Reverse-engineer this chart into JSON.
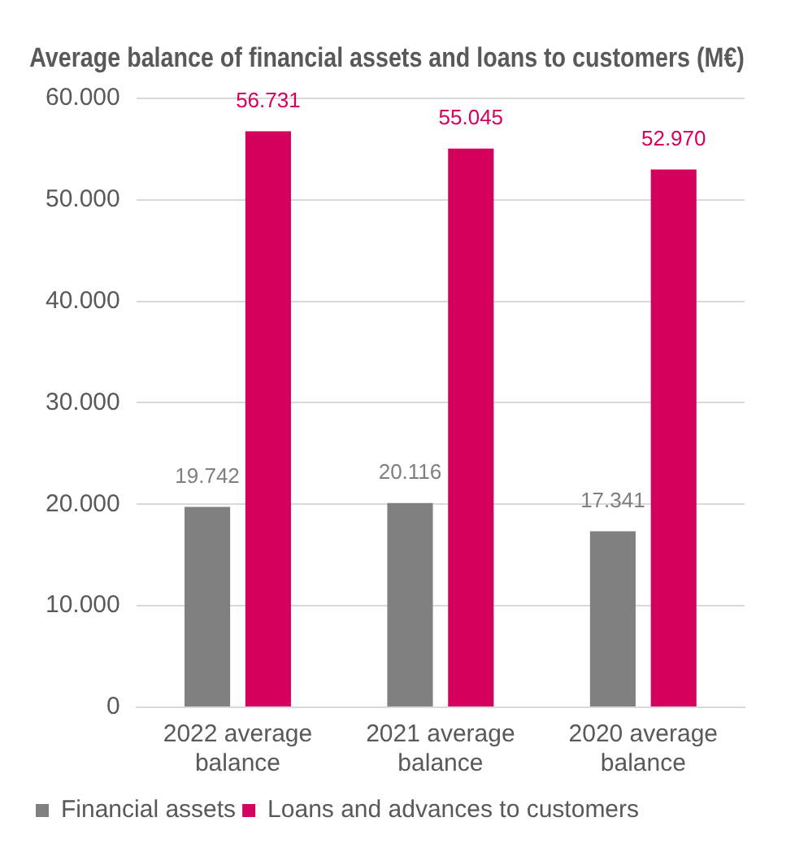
{
  "chart_data": {
    "type": "bar",
    "title": "Average balance of financial assets and loans to customers (M€)",
    "categories": [
      "2022 average balance",
      "2021 average balance",
      "2020 average balance"
    ],
    "series": [
      {
        "name": "Financial assets",
        "color": "#808080",
        "values": [
          19742,
          20116,
          17341
        ],
        "value_labels": [
          "19.742",
          "20.116",
          "17.341"
        ]
      },
      {
        "name": "Loans and advances to customers",
        "color": "#d6005d",
        "values": [
          56731,
          55045,
          52970
        ],
        "value_labels": [
          "56.731",
          "55.045",
          "52.970"
        ]
      }
    ],
    "ylim": [
      0,
      60000
    ],
    "yticks": [
      {
        "value": 0,
        "label": "0"
      },
      {
        "value": 10000,
        "label": "10.000"
      },
      {
        "value": 20000,
        "label": "20.000"
      },
      {
        "value": 30000,
        "label": "30.000"
      },
      {
        "value": 40000,
        "label": "40.000"
      },
      {
        "value": 50000,
        "label": "50.000"
      },
      {
        "value": 60000,
        "label": "60.000"
      }
    ],
    "grid": "y",
    "legend": "bottom left"
  }
}
